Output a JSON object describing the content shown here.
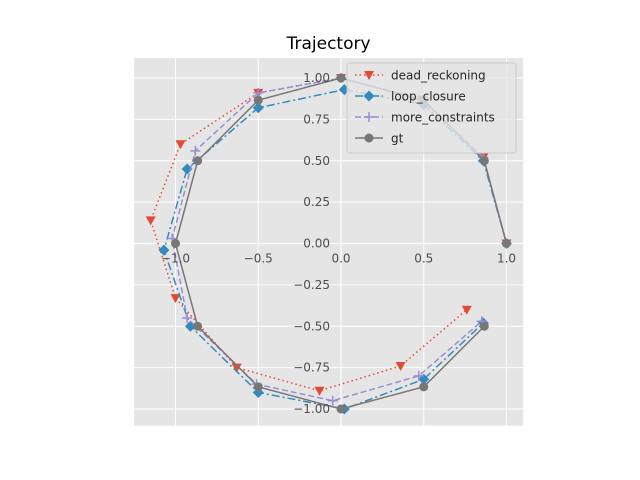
{
  "chart_data": {
    "type": "line",
    "title": "Trajectory",
    "xlabel": "",
    "ylabel": "",
    "xlim": [
      -1.25,
      1.1
    ],
    "ylim": [
      -1.1,
      1.12
    ],
    "x_ticks": [
      -1.0,
      -0.5,
      0.0,
      0.5,
      1.0
    ],
    "x_tick_labels": [
      "−1.0",
      "−0.5",
      "0.0",
      "0.5",
      "1.0"
    ],
    "y_ticks": [
      -1.0,
      -0.75,
      -0.5,
      -0.25,
      0.0,
      0.25,
      0.5,
      0.75,
      1.0
    ],
    "y_tick_labels": [
      "−1.00",
      "−0.75",
      "−0.50",
      "−0.25",
      "0.00",
      "0.25",
      "0.50",
      "0.75",
      "1.00"
    ],
    "grid": true,
    "legend_position": "top-right",
    "series": [
      {
        "name": "dead_reckoning",
        "color": "#e24a33",
        "linestyle": "dotted",
        "marker": "triangle-down",
        "x": [
          1.0,
          0.86,
          0.49,
          0.0,
          -0.5,
          -0.97,
          -1.15,
          -1.0,
          -0.63,
          -0.13,
          0.36,
          0.76
        ],
        "y": [
          0.0,
          0.52,
          0.87,
          1.0,
          0.91,
          0.6,
          0.14,
          -0.33,
          -0.75,
          -0.89,
          -0.74,
          -0.4
        ]
      },
      {
        "name": "loop_closure",
        "color": "#348abd",
        "linestyle": "dashdot",
        "marker": "diamond",
        "x": [
          1.0,
          0.86,
          0.5,
          0.02,
          -0.5,
          -0.93,
          -1.07,
          -0.91,
          -0.5,
          0.02,
          0.5,
          0.86
        ],
        "y": [
          0.0,
          0.5,
          0.84,
          0.93,
          0.82,
          0.45,
          -0.04,
          -0.5,
          -0.9,
          -1.0,
          -0.82,
          -0.48
        ]
      },
      {
        "name": "more_constraints",
        "color": "#988ed5",
        "linestyle": "dashed",
        "marker": "plus",
        "x": [
          1.0,
          0.86,
          0.5,
          0.0,
          -0.5,
          -0.88,
          -1.02,
          -0.93,
          -0.51,
          -0.05,
          0.47,
          0.85
        ],
        "y": [
          0.0,
          0.52,
          0.86,
          1.0,
          0.91,
          0.56,
          0.03,
          -0.45,
          -0.85,
          -0.95,
          -0.8,
          -0.47
        ]
      },
      {
        "name": "gt",
        "color": "#777777",
        "linestyle": "solid",
        "marker": "circle",
        "x": [
          1.0,
          0.866,
          0.5,
          0.0,
          -0.5,
          -0.866,
          -1.0,
          -0.866,
          -0.5,
          0.0,
          0.5,
          0.866
        ],
        "y": [
          0.0,
          0.5,
          0.866,
          1.0,
          0.866,
          0.5,
          0.0,
          -0.5,
          -0.866,
          -1.0,
          -0.866,
          -0.5
        ]
      }
    ]
  }
}
